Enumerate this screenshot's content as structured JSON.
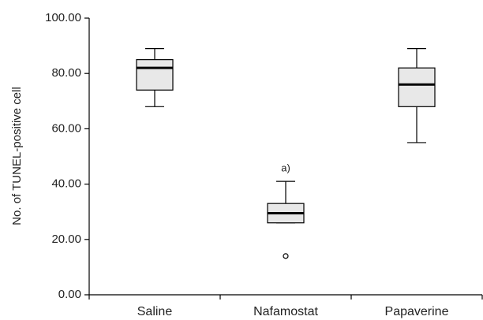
{
  "chart_data": {
    "type": "box",
    "y_label": "No. of  TUNEL-positive cell",
    "categories": [
      "Saline",
      "Nafamostat",
      "Papaverine"
    ],
    "boxes": [
      {
        "min": 68,
        "q1": 74,
        "median": 82,
        "q3": 85,
        "max": 89,
        "outliers": []
      },
      {
        "min": 26,
        "q1": 26,
        "median": 29.5,
        "q3": 33,
        "max": 41,
        "outliers": [
          14
        ]
      },
      {
        "min": 55,
        "q1": 68,
        "median": 76,
        "q3": 82,
        "max": 89,
        "outliers": []
      }
    ],
    "annotations": [
      {
        "category": "Nafamostat",
        "text": "a)"
      }
    ],
    "box_color": "#e8e8e8",
    "ylim": [
      0,
      100
    ],
    "yticks": [
      {
        "value": 0,
        "label": "0.00"
      },
      {
        "value": 20,
        "label": "20.00"
      },
      {
        "value": 40,
        "label": "40.00"
      },
      {
        "value": 60,
        "label": "60.00"
      },
      {
        "value": 80,
        "label": "80.00"
      },
      {
        "value": 100,
        "label": "100.00"
      }
    ]
  }
}
